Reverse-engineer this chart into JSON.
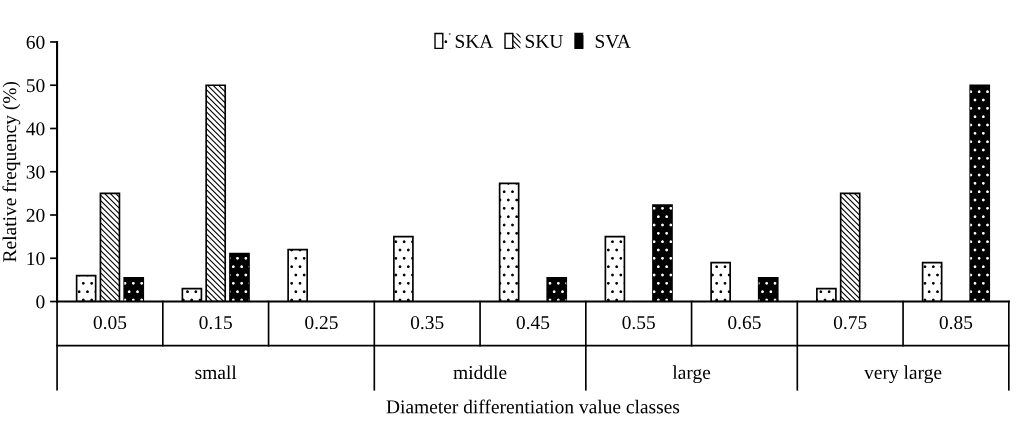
{
  "chart_data": {
    "type": "bar",
    "xlabel": "Diameter differentiation value classes",
    "ylabel": "Relative frequency (%)",
    "categories": [
      "0.05",
      "0.15",
      "0.25",
      "0.35",
      "0.45",
      "0.55",
      "0.65",
      "0.75",
      "0.85"
    ],
    "series": [
      {
        "name": "SKA",
        "color": "#ffffff",
        "values": [
          6,
          3,
          12,
          15,
          27.3,
          15,
          9,
          3,
          9
        ]
      },
      {
        "name": "SKU",
        "color": "#ffffff",
        "values": [
          25,
          50,
          0,
          0,
          0,
          0,
          0,
          25,
          0
        ]
      },
      {
        "name": "SVA",
        "color": "#000000",
        "values": [
          5.5,
          11.1,
          0,
          0,
          5.5,
          22.3,
          5.5,
          0,
          50
        ]
      }
    ],
    "annotations": [
      "small",
      "middle",
      "large",
      "very large"
    ],
    "ylim": [
      0,
      60
    ],
    "yticks": [
      0,
      10,
      20,
      30,
      40,
      50,
      60
    ],
    "grid": false,
    "legend": "top"
  }
}
